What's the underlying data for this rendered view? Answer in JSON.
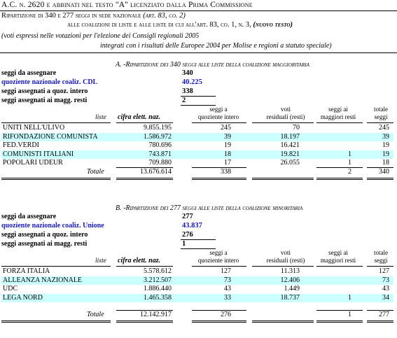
{
  "header": {
    "line1": "A.C. n. 2620 e abbinati nel testo \"A\" licenziato dalla Prima Commissione",
    "line2": "Ripartizione di 340 e 277 seggi in sede nazionale",
    "line2_ref": "(art. 83, co. 2)",
    "line3": "alle coalizioni di liste e alle liste di cui all'art. 83, co. 1, n. 3,",
    "line3_ref": "(nuovo testo)",
    "note1": "(voti espressi nelle votazioni per l'elezione dei Consigli regionali 2005",
    "note2": "integrati con i risultati delle Europee 2004 per Molise e regioni a statuto speciale)"
  },
  "section_a": {
    "title": "A. -Ripartizione dei 340 seggi alle liste della coalizione maggioritaria",
    "labels": {
      "seggi_da_assegnare": "seggi da assegnare",
      "quoziente": "quoziente nazionale coaliz. CDL",
      "seggi_intero": "seggi assegnati a quoz. intero",
      "seggi_resti": "seggi assegnati ai magg. resti"
    },
    "values": {
      "seggi_da_assegnare": "340",
      "quoziente": "40.225",
      "seggi_intero": "338",
      "seggi_resti": "2"
    },
    "columns": {
      "liste": "liste",
      "cifra": "cifra elett. naz.",
      "seggi_quoz_1": "seggi a",
      "seggi_quoz_2": "quoziente intero",
      "voti_1": "voti",
      "voti_2": "residuali (resti)",
      "seggi_resti_1": "seggi ai",
      "seggi_resti_2": "maggiori resti",
      "totale_1": "totale",
      "totale_2": "seggi"
    },
    "rows": [
      {
        "name": "UNITI NELL'ULIVO",
        "cifra": "9.855.195",
        "quoz": "245",
        "voti": "70",
        "resti": "",
        "totale": "245"
      },
      {
        "name": "RIFONDAZIONE COMUNISTA",
        "cifra": "1.586.972",
        "quoz": "39",
        "voti": "18.197",
        "resti": "",
        "totale": "39"
      },
      {
        "name": "FED.VERDI",
        "cifra": "780.696",
        "quoz": "19",
        "voti": "16.421",
        "resti": "",
        "totale": "19"
      },
      {
        "name": "COMUNISTI ITALIANI",
        "cifra": "743.871",
        "quoz": "18",
        "voti": "19.821",
        "resti": "1",
        "totale": "19"
      },
      {
        "name": "POPOLARI UDEUR",
        "cifra": "709.880",
        "quoz": "17",
        "voti": "26.055",
        "resti": "1",
        "totale": "18"
      }
    ],
    "totale": {
      "label": "Totale",
      "cifra": "13.676.614",
      "quoz": "338",
      "resti": "2",
      "totale": "340"
    }
  },
  "section_b": {
    "title": "B. -Ripartizione dei 277 seggi alle liste della coalizione minoritaria",
    "labels": {
      "seggi_da_assegnare": "seggi da assegnare",
      "quoziente": "quoziente nazionale coaliz. Unione",
      "seggi_intero": "seggi assegnati a quoz. intero",
      "seggi_resti": "seggi assegnati ai magg. resti"
    },
    "values": {
      "seggi_da_assegnare": "277",
      "quoziente": "43.837",
      "seggi_intero": "276",
      "seggi_resti": "1"
    },
    "columns": {
      "liste": "liste",
      "cifra": "cifra elett. naz.",
      "seggi_quoz_1": "seggi a",
      "seggi_quoz_2": "quoziente intero",
      "voti_1": "voti",
      "voti_2": "residuali (resti)",
      "seggi_resti_1": "seggi ai",
      "seggi_resti_2": "maggiori resti",
      "totale_1": "totale",
      "totale_2": "seggi"
    },
    "rows": [
      {
        "name": "FORZA ITALIA",
        "cifra": "5.578.612",
        "quoz": "127",
        "voti": "11.313",
        "resti": "",
        "totale": "127"
      },
      {
        "name": "ALLEANZA NAZIONALE",
        "cifra": "3.212.507",
        "quoz": "73",
        "voti": "12.406",
        "resti": "",
        "totale": "73"
      },
      {
        "name": "UDC",
        "cifra": "1.886.440",
        "quoz": "43",
        "voti": "1.449",
        "resti": "",
        "totale": "43"
      },
      {
        "name": "LEGA NORD",
        "cifra": "1.465.358",
        "quoz": "33",
        "voti": "18.737",
        "resti": "1",
        "totale": "34"
      }
    ],
    "totale": {
      "label": "Totale",
      "cifra": "12.142.917",
      "quoz": "276",
      "resti": "1",
      "totale": "277"
    }
  }
}
